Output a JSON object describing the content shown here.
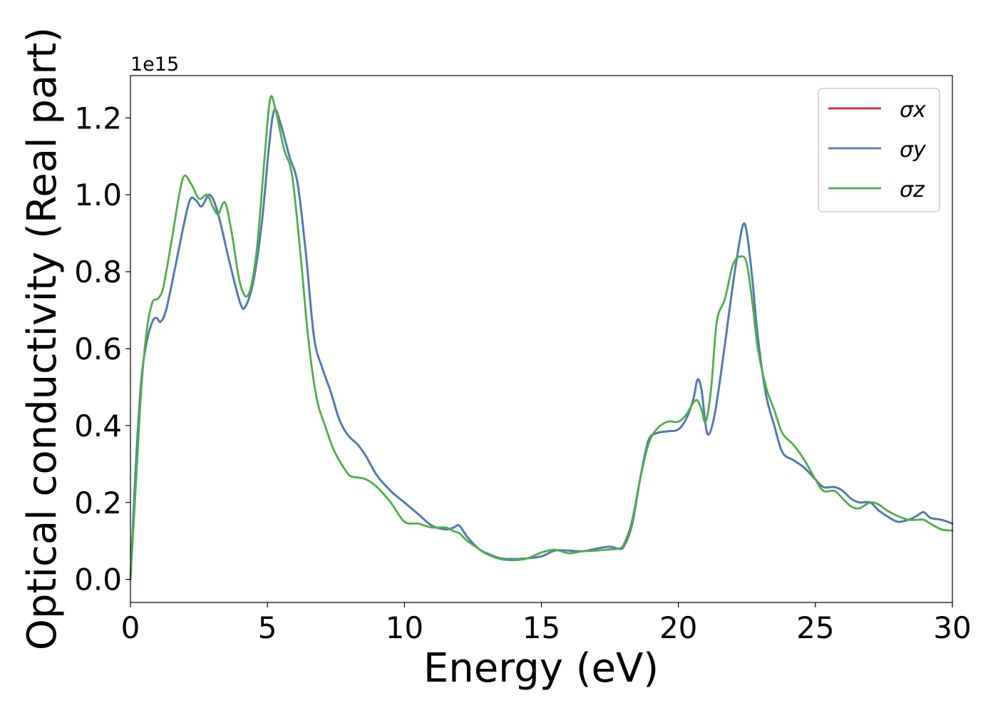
{
  "chart_data": {
    "type": "line",
    "xlabel": "Energy (eV)",
    "ylabel": "Optical conductivity (Real part)",
    "offset_text": "1e15",
    "xlim": [
      0,
      30
    ],
    "ylim": [
      -0.06,
      1.31
    ],
    "y_scale": 1000000000000000.0,
    "xticks": [
      "0",
      "5",
      "10",
      "15",
      "20",
      "25",
      "30"
    ],
    "yticks": [
      "0.0",
      "0.2",
      "0.4",
      "0.6",
      "0.8",
      "1.0",
      "1.2"
    ],
    "grid": false,
    "legend_position": "top-right",
    "series": [
      {
        "name": "σx",
        "color": "#d62728",
        "x": [
          0,
          0.2,
          0.4,
          0.6,
          0.8,
          0.95,
          1.1,
          1.3,
          1.6,
          2.0,
          2.2,
          2.4,
          2.6,
          2.9,
          3.2,
          3.6,
          4.0,
          4.2,
          4.5,
          4.8,
          5.05,
          5.25,
          5.5,
          5.8,
          6.1,
          6.4,
          6.7,
          7.0,
          7.3,
          7.6,
          7.8,
          8.0,
          8.3,
          8.6,
          9.0,
          9.5,
          10.0,
          10.5,
          11.0,
          11.5,
          11.8,
          12.0,
          12.3,
          12.7,
          13.0,
          13.5,
          14.0,
          14.5,
          15.0,
          15.5,
          16.0,
          16.5,
          17.0,
          17.5,
          17.8,
          18.0,
          18.3,
          18.6,
          18.9,
          19.2,
          19.6,
          20.0,
          20.3,
          20.55,
          20.7,
          20.85,
          21.05,
          21.3,
          21.6,
          21.9,
          22.1,
          22.35,
          22.5,
          22.7,
          22.9,
          23.2,
          23.5,
          23.8,
          24.2,
          24.6,
          25.0,
          25.3,
          25.7,
          26.0,
          26.3,
          26.6,
          27.0,
          27.3,
          27.6,
          28.0,
          28.4,
          28.7,
          28.95,
          29.2,
          29.6,
          30.0
        ],
        "y": [
          0.0,
          0.3,
          0.52,
          0.62,
          0.67,
          0.68,
          0.67,
          0.7,
          0.8,
          0.94,
          0.99,
          0.985,
          0.97,
          1.0,
          0.95,
          0.83,
          0.72,
          0.71,
          0.78,
          0.93,
          1.12,
          1.22,
          1.18,
          1.1,
          1.03,
          0.85,
          0.63,
          0.55,
          0.49,
          0.42,
          0.39,
          0.37,
          0.35,
          0.32,
          0.27,
          0.23,
          0.2,
          0.17,
          0.14,
          0.13,
          0.135,
          0.14,
          0.11,
          0.08,
          0.068,
          0.055,
          0.053,
          0.055,
          0.06,
          0.075,
          0.075,
          0.073,
          0.08,
          0.085,
          0.08,
          0.085,
          0.14,
          0.26,
          0.36,
          0.38,
          0.385,
          0.39,
          0.42,
          0.47,
          0.52,
          0.49,
          0.38,
          0.42,
          0.56,
          0.72,
          0.82,
          0.92,
          0.9,
          0.78,
          0.63,
          0.48,
          0.4,
          0.33,
          0.31,
          0.29,
          0.26,
          0.24,
          0.24,
          0.23,
          0.21,
          0.2,
          0.2,
          0.18,
          0.165,
          0.15,
          0.155,
          0.165,
          0.175,
          0.16,
          0.155,
          0.145
        ]
      },
      {
        "name": "σy",
        "color": "#4a7eb5",
        "x": [
          0,
          0.2,
          0.4,
          0.6,
          0.8,
          0.95,
          1.1,
          1.3,
          1.6,
          2.0,
          2.2,
          2.4,
          2.6,
          2.9,
          3.2,
          3.6,
          4.0,
          4.2,
          4.5,
          4.8,
          5.05,
          5.25,
          5.5,
          5.8,
          6.1,
          6.4,
          6.7,
          7.0,
          7.3,
          7.6,
          7.8,
          8.0,
          8.3,
          8.6,
          9.0,
          9.5,
          10.0,
          10.5,
          11.0,
          11.5,
          11.8,
          12.0,
          12.3,
          12.7,
          13.0,
          13.5,
          14.0,
          14.5,
          15.0,
          15.5,
          16.0,
          16.5,
          17.0,
          17.5,
          17.8,
          18.0,
          18.3,
          18.6,
          18.9,
          19.2,
          19.6,
          20.0,
          20.3,
          20.55,
          20.7,
          20.85,
          21.05,
          21.3,
          21.6,
          21.9,
          22.1,
          22.35,
          22.5,
          22.7,
          22.9,
          23.2,
          23.5,
          23.8,
          24.2,
          24.6,
          25.0,
          25.3,
          25.7,
          26.0,
          26.3,
          26.6,
          27.0,
          27.3,
          27.6,
          28.0,
          28.4,
          28.7,
          28.95,
          29.2,
          29.6,
          30.0
        ],
        "y": [
          0.0,
          0.3,
          0.52,
          0.62,
          0.67,
          0.68,
          0.67,
          0.7,
          0.8,
          0.94,
          0.99,
          0.985,
          0.97,
          1.0,
          0.95,
          0.83,
          0.72,
          0.71,
          0.78,
          0.93,
          1.12,
          1.22,
          1.18,
          1.1,
          1.03,
          0.85,
          0.63,
          0.55,
          0.49,
          0.42,
          0.39,
          0.37,
          0.35,
          0.32,
          0.27,
          0.23,
          0.2,
          0.17,
          0.14,
          0.13,
          0.135,
          0.14,
          0.11,
          0.08,
          0.068,
          0.055,
          0.053,
          0.055,
          0.06,
          0.075,
          0.075,
          0.073,
          0.08,
          0.085,
          0.08,
          0.085,
          0.14,
          0.26,
          0.36,
          0.38,
          0.385,
          0.39,
          0.42,
          0.47,
          0.52,
          0.49,
          0.38,
          0.42,
          0.56,
          0.72,
          0.82,
          0.92,
          0.9,
          0.78,
          0.63,
          0.48,
          0.4,
          0.33,
          0.31,
          0.29,
          0.26,
          0.24,
          0.24,
          0.23,
          0.21,
          0.2,
          0.2,
          0.18,
          0.165,
          0.15,
          0.155,
          0.165,
          0.175,
          0.16,
          0.155,
          0.145
        ]
      },
      {
        "name": "σz",
        "color": "#4daf4a",
        "x": [
          0,
          0.2,
          0.4,
          0.6,
          0.8,
          1.0,
          1.2,
          1.5,
          1.9,
          2.2,
          2.5,
          2.8,
          3.0,
          3.2,
          3.45,
          3.7,
          4.0,
          4.3,
          4.6,
          4.9,
          5.1,
          5.3,
          5.6,
          5.9,
          6.2,
          6.5,
          6.8,
          7.1,
          7.4,
          7.7,
          8.0,
          8.3,
          8.6,
          9.0,
          9.5,
          10.0,
          10.5,
          11.0,
          11.5,
          11.8,
          12.0,
          12.3,
          12.7,
          13.0,
          13.5,
          14.0,
          14.5,
          15.0,
          15.5,
          16.0,
          16.5,
          17.0,
          17.5,
          17.8,
          18.0,
          18.3,
          18.6,
          18.9,
          19.2,
          19.6,
          20.0,
          20.3,
          20.55,
          20.7,
          20.85,
          21.0,
          21.2,
          21.4,
          21.7,
          22.0,
          22.3,
          22.5,
          22.7,
          22.9,
          23.2,
          23.5,
          23.8,
          24.2,
          24.6,
          25.0,
          25.3,
          25.7,
          26.0,
          26.3,
          26.6,
          27.0,
          27.3,
          27.6,
          28.0,
          28.4,
          28.7,
          28.95,
          29.2,
          29.6,
          30.0
        ],
        "y": [
          0.0,
          0.25,
          0.5,
          0.65,
          0.72,
          0.73,
          0.76,
          0.88,
          1.04,
          1.03,
          0.99,
          1.0,
          0.97,
          0.95,
          0.98,
          0.9,
          0.77,
          0.74,
          0.85,
          1.1,
          1.25,
          1.22,
          1.12,
          1.05,
          0.85,
          0.62,
          0.47,
          0.4,
          0.34,
          0.3,
          0.27,
          0.265,
          0.26,
          0.24,
          0.2,
          0.15,
          0.145,
          0.135,
          0.135,
          0.125,
          0.12,
          0.1,
          0.08,
          0.066,
          0.053,
          0.05,
          0.055,
          0.07,
          0.077,
          0.068,
          0.073,
          0.075,
          0.078,
          0.08,
          0.09,
          0.15,
          0.26,
          0.35,
          0.39,
          0.41,
          0.41,
          0.43,
          0.46,
          0.465,
          0.44,
          0.41,
          0.5,
          0.67,
          0.73,
          0.82,
          0.84,
          0.82,
          0.72,
          0.6,
          0.5,
          0.44,
          0.38,
          0.35,
          0.31,
          0.26,
          0.23,
          0.23,
          0.21,
          0.19,
          0.185,
          0.2,
          0.195,
          0.18,
          0.165,
          0.155,
          0.155,
          0.155,
          0.145,
          0.13,
          0.127
        ]
      }
    ]
  }
}
